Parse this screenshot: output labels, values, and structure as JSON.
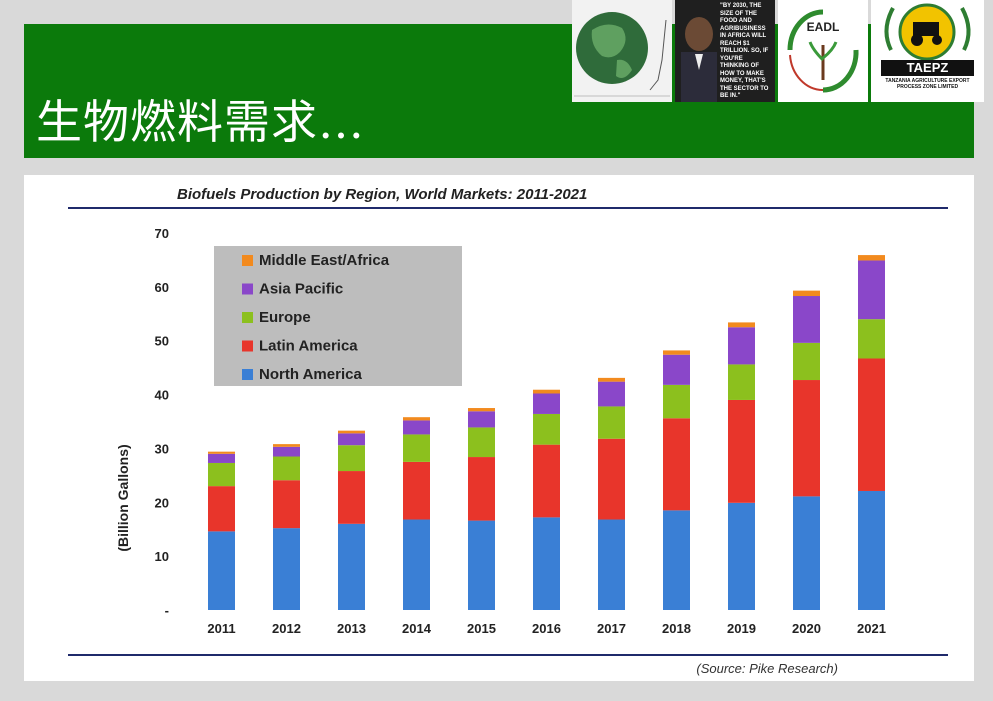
{
  "header": {
    "title": "生物燃料需求…",
    "background": "#0b7a0b"
  },
  "logos": {
    "quote_text": "\"By 2030, the size of the food and agribusiness in Africa will reach $1 trillion. So, if you're thinking of how to make money, that's the sector to be in.\"",
    "eadl_text": "EADL",
    "taepz_text": "TAEPZ",
    "taepz_sub": "TANZANIA AGRICULTURE EXPORT PROCESS ZONE LIMITED"
  },
  "chart_data": {
    "type": "bar",
    "stacked": true,
    "title": "Biofuels Production by Region, World Markets: 2011-2021",
    "ylabel": "(Billion Gallons)",
    "xlabel": "",
    "source": "(Source: Pike Research)",
    "ylim": [
      0,
      70
    ],
    "yticks": [
      "-",
      "10",
      "20",
      "30",
      "40",
      "50",
      "60",
      "70"
    ],
    "categories": [
      "2011",
      "2012",
      "2013",
      "2014",
      "2015",
      "2016",
      "2017",
      "2018",
      "2019",
      "2020",
      "2021"
    ],
    "series": [
      {
        "name": "North America",
        "color": "#3a7fd5",
        "values": [
          14.6,
          15.2,
          16.0,
          16.8,
          16.6,
          17.2,
          16.8,
          18.5,
          19.9,
          21.1,
          22.1
        ]
      },
      {
        "name": "Latin America",
        "color": "#e8352b",
        "values": [
          8.4,
          8.9,
          9.8,
          10.7,
          11.8,
          13.5,
          15.0,
          17.1,
          19.1,
          21.6,
          24.6
        ]
      },
      {
        "name": "Europe",
        "color": "#8cc01e",
        "values": [
          4.3,
          4.4,
          4.8,
          5.1,
          5.5,
          5.7,
          6.0,
          6.2,
          6.6,
          6.9,
          7.3
        ]
      },
      {
        "name": "Asia Pacific",
        "color": "#8a47c9",
        "values": [
          1.7,
          1.8,
          2.2,
          2.6,
          3.0,
          3.8,
          4.6,
          5.6,
          6.9,
          8.7,
          10.9
        ]
      },
      {
        "name": "Middle East/Africa",
        "color": "#f28a1e",
        "values": [
          0.4,
          0.5,
          0.5,
          0.6,
          0.6,
          0.7,
          0.7,
          0.8,
          0.9,
          1.0,
          1.0
        ]
      }
    ],
    "legend_order": [
      "Middle East/Africa",
      "Asia Pacific",
      "Europe",
      "Latin America",
      "North America"
    ],
    "legend_position": "top-left",
    "grid": false
  }
}
